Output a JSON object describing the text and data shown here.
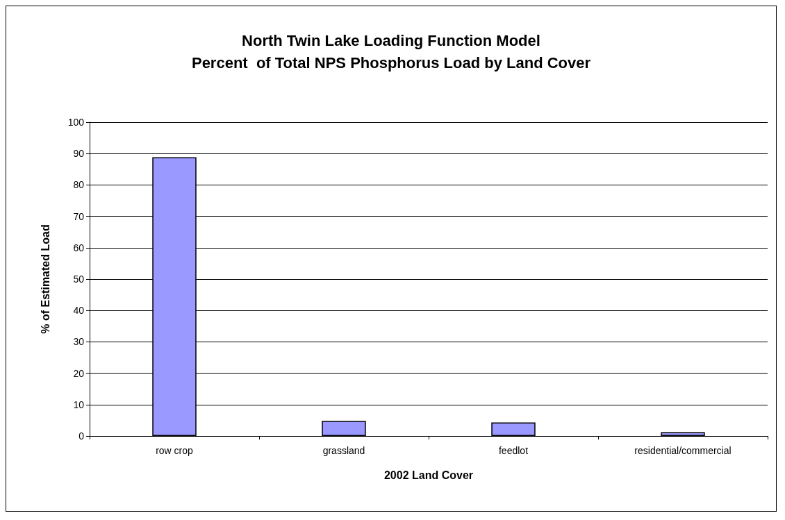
{
  "chart_data": {
    "type": "bar",
    "title": "North Twin Lake Loading Function Model\nPercent  of Total NPS Phosphorus Load by Land Cover",
    "xlabel": "2002 Land Cover",
    "ylabel": "% of Estimated Load",
    "categories": [
      "row crop",
      "grassland",
      "feedlot",
      "residential/commercial"
    ],
    "values": [
      88.8,
      4.8,
      4.3,
      1.2
    ],
    "color": "#9999ff",
    "ylim": [
      0,
      100
    ],
    "yticks": [
      0,
      10,
      20,
      30,
      40,
      50,
      60,
      70,
      80,
      90,
      100
    ],
    "grid": "y"
  }
}
